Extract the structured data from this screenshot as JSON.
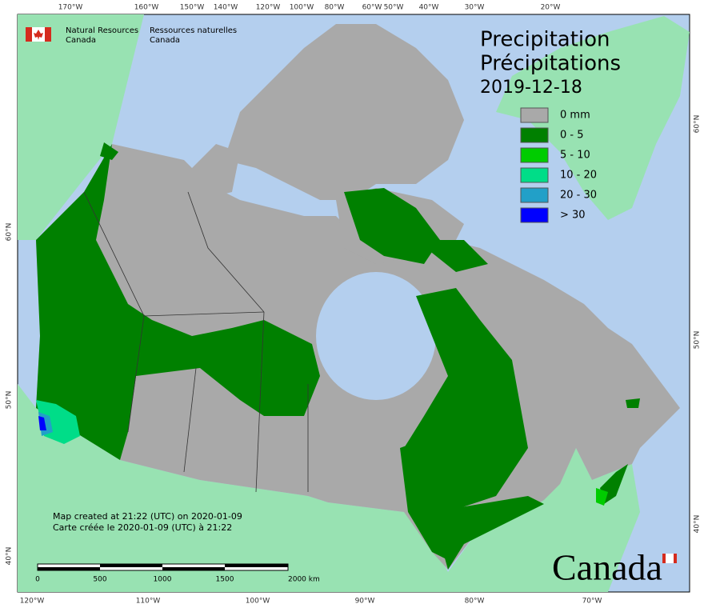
{
  "agency": {
    "en_line1": "Natural Resources",
    "en_line2": "Canada",
    "fr_line1": "Ressources naturelles",
    "fr_line2": "Canada"
  },
  "title": {
    "en": "Precipitation",
    "fr": "Précipitations",
    "date": "2019-12-18"
  },
  "legend": [
    {
      "label": "0 mm",
      "color": "#a9a9a9"
    },
    {
      "label": "0 - 5",
      "color": "#008000"
    },
    {
      "label": "5 - 10",
      "color": "#00cc00"
    },
    {
      "label": "10 - 20",
      "color": "#00dd88"
    },
    {
      "label": "20 - 30",
      "color": "#22a0c8"
    },
    {
      "label": "> 30",
      "color": "#0000ff"
    }
  ],
  "footer": {
    "created_en": "Map created at 21:22 (UTC) on 2020-01-09",
    "created_fr": "Carte créée le 2020-01-09 (UTC) à 21:22"
  },
  "scale_bar": {
    "labels": [
      "0",
      "500",
      "1000",
      "1500",
      "2000 km"
    ]
  },
  "graticule": {
    "top": [
      "170°W",
      "160°W",
      "150°W",
      "140°W",
      "120°W",
      "100°W",
      "80°W",
      "60°W",
      "50°W",
      "40°W",
      "30°W",
      "20°W"
    ],
    "bottom": [
      "120°W",
      "110°W",
      "100°W",
      "90°W",
      "80°W",
      "70°W"
    ],
    "left": [
      "60°N",
      "50°N",
      "40°N"
    ],
    "right": [
      "60°N",
      "50°N",
      "40°N"
    ]
  },
  "wordmark": "Canada"
}
